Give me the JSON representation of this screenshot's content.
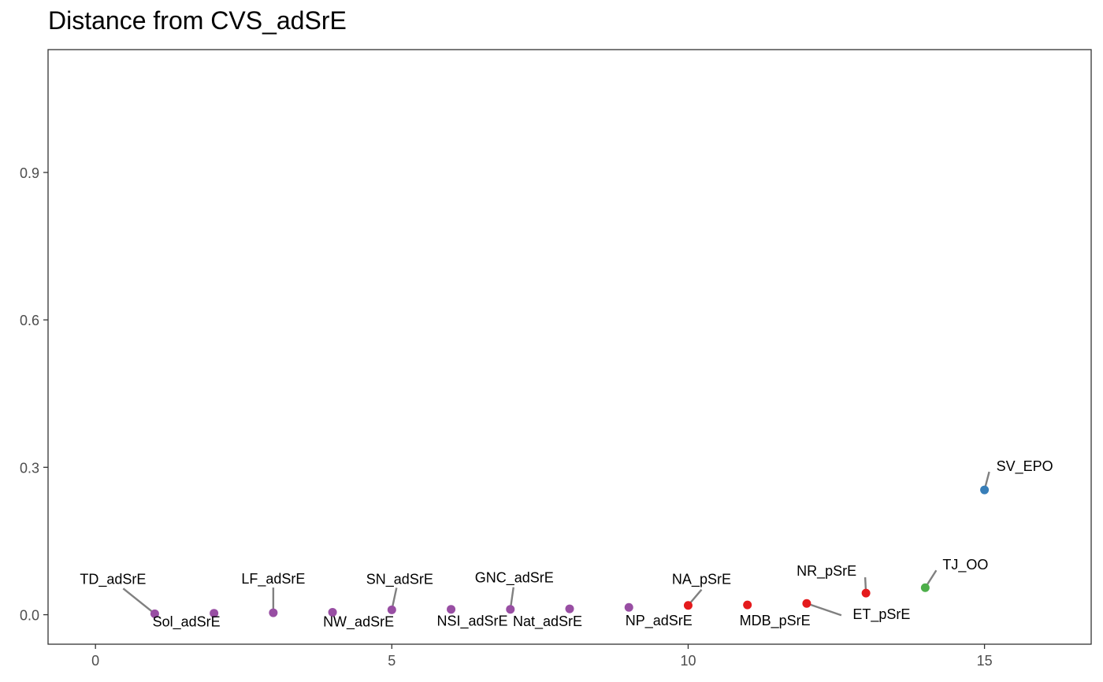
{
  "chart_data": {
    "type": "scatter",
    "title": "Distance from CVS_adSrE",
    "xlabel": "",
    "ylabel": "",
    "xlim": [
      -0.8,
      16.8
    ],
    "ylim": [
      -0.06,
      1.15
    ],
    "x_ticks": [
      0,
      5,
      10,
      15
    ],
    "y_ticks": [
      0.0,
      0.3,
      0.6,
      0.9
    ],
    "y_tick_labels": [
      "0.0",
      "0.3",
      "0.6",
      "0.9"
    ],
    "grid": false,
    "legend": "none",
    "colors": {
      "purple": "#984EA3",
      "red": "#E41A1C",
      "blue": "#377EB8",
      "green": "#4DAF4A",
      "leader": "#808080"
    },
    "points": [
      {
        "x": 1,
        "y": 0.002,
        "label": "TD_adSrE",
        "color": "#984EA3"
      },
      {
        "x": 2,
        "y": 0.003,
        "label": "Sol_adSrE",
        "color": "#984EA3"
      },
      {
        "x": 3,
        "y": 0.004,
        "label": "LF_adSrE",
        "color": "#984EA3"
      },
      {
        "x": 4,
        "y": 0.005,
        "label": "NW_adSrE",
        "color": "#984EA3"
      },
      {
        "x": 5,
        "y": 0.01,
        "label": "SN_adSrE",
        "color": "#984EA3"
      },
      {
        "x": 6,
        "y": 0.011,
        "label": "NSI_adSrE",
        "color": "#984EA3"
      },
      {
        "x": 7,
        "y": 0.011,
        "label": "GNC_adSrE",
        "color": "#984EA3"
      },
      {
        "x": 8,
        "y": 0.012,
        "label": "Nat_adSrE",
        "color": "#984EA3"
      },
      {
        "x": 9,
        "y": 0.015,
        "label": "NP_adSrE",
        "color": "#984EA3"
      },
      {
        "x": 10,
        "y": 0.019,
        "label": "NA_pSrE",
        "color": "#E41A1C"
      },
      {
        "x": 11,
        "y": 0.02,
        "label": "MDB_pSrE",
        "color": "#E41A1C"
      },
      {
        "x": 12,
        "y": 0.023,
        "label": "ET_pSrE",
        "color": "#E41A1C"
      },
      {
        "x": 13,
        "y": 0.044,
        "label": "NR_pSrE",
        "color": "#E41A1C"
      },
      {
        "x": 14,
        "y": 0.055,
        "label": "TJ_OO",
        "color": "#4DAF4A"
      },
      {
        "x": 15,
        "y": 0.254,
        "label": "SV_EPO",
        "color": "#377EB8"
      }
    ]
  }
}
